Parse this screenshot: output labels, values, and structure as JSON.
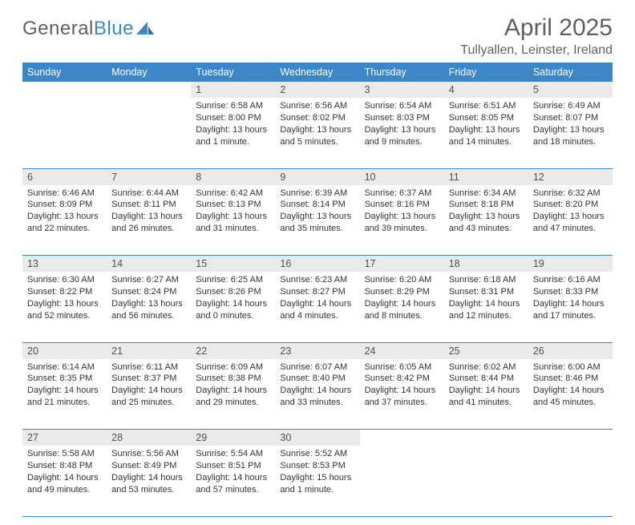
{
  "logo": {
    "part1": "General",
    "part2": "Blue"
  },
  "title": "April 2025",
  "location": "Tullyallen, Leinster, Ireland",
  "colors": {
    "header_bg": "#3b87c8",
    "header_text": "#ffffff",
    "daynum_bg": "#eaeaea",
    "text": "#333333",
    "muted": "#606060",
    "rule": "#3b87c8"
  },
  "fonts": {
    "title_size_pt": 22,
    "location_size_pt": 12,
    "dayheader_size_pt": 9.5,
    "daynum_size_pt": 9.5,
    "body_size_pt": 8.5
  },
  "day_headers": [
    "Sunday",
    "Monday",
    "Tuesday",
    "Wednesday",
    "Thursday",
    "Friday",
    "Saturday"
  ],
  "weeks": [
    [
      null,
      null,
      {
        "n": "1",
        "sr": "Sunrise: 6:58 AM",
        "ss": "Sunset: 8:00 PM",
        "dl": "Daylight: 13 hours and 1 minute."
      },
      {
        "n": "2",
        "sr": "Sunrise: 6:56 AM",
        "ss": "Sunset: 8:02 PM",
        "dl": "Daylight: 13 hours and 5 minutes."
      },
      {
        "n": "3",
        "sr": "Sunrise: 6:54 AM",
        "ss": "Sunset: 8:03 PM",
        "dl": "Daylight: 13 hours and 9 minutes."
      },
      {
        "n": "4",
        "sr": "Sunrise: 6:51 AM",
        "ss": "Sunset: 8:05 PM",
        "dl": "Daylight: 13 hours and 14 minutes."
      },
      {
        "n": "5",
        "sr": "Sunrise: 6:49 AM",
        "ss": "Sunset: 8:07 PM",
        "dl": "Daylight: 13 hours and 18 minutes."
      }
    ],
    [
      {
        "n": "6",
        "sr": "Sunrise: 6:46 AM",
        "ss": "Sunset: 8:09 PM",
        "dl": "Daylight: 13 hours and 22 minutes."
      },
      {
        "n": "7",
        "sr": "Sunrise: 6:44 AM",
        "ss": "Sunset: 8:11 PM",
        "dl": "Daylight: 13 hours and 26 minutes."
      },
      {
        "n": "8",
        "sr": "Sunrise: 6:42 AM",
        "ss": "Sunset: 8:13 PM",
        "dl": "Daylight: 13 hours and 31 minutes."
      },
      {
        "n": "9",
        "sr": "Sunrise: 6:39 AM",
        "ss": "Sunset: 8:14 PM",
        "dl": "Daylight: 13 hours and 35 minutes."
      },
      {
        "n": "10",
        "sr": "Sunrise: 6:37 AM",
        "ss": "Sunset: 8:16 PM",
        "dl": "Daylight: 13 hours and 39 minutes."
      },
      {
        "n": "11",
        "sr": "Sunrise: 6:34 AM",
        "ss": "Sunset: 8:18 PM",
        "dl": "Daylight: 13 hours and 43 minutes."
      },
      {
        "n": "12",
        "sr": "Sunrise: 6:32 AM",
        "ss": "Sunset: 8:20 PM",
        "dl": "Daylight: 13 hours and 47 minutes."
      }
    ],
    [
      {
        "n": "13",
        "sr": "Sunrise: 6:30 AM",
        "ss": "Sunset: 8:22 PM",
        "dl": "Daylight: 13 hours and 52 minutes."
      },
      {
        "n": "14",
        "sr": "Sunrise: 6:27 AM",
        "ss": "Sunset: 8:24 PM",
        "dl": "Daylight: 13 hours and 56 minutes."
      },
      {
        "n": "15",
        "sr": "Sunrise: 6:25 AM",
        "ss": "Sunset: 8:26 PM",
        "dl": "Daylight: 14 hours and 0 minutes."
      },
      {
        "n": "16",
        "sr": "Sunrise: 6:23 AM",
        "ss": "Sunset: 8:27 PM",
        "dl": "Daylight: 14 hours and 4 minutes."
      },
      {
        "n": "17",
        "sr": "Sunrise: 6:20 AM",
        "ss": "Sunset: 8:29 PM",
        "dl": "Daylight: 14 hours and 8 minutes."
      },
      {
        "n": "18",
        "sr": "Sunrise: 6:18 AM",
        "ss": "Sunset: 8:31 PM",
        "dl": "Daylight: 14 hours and 12 minutes."
      },
      {
        "n": "19",
        "sr": "Sunrise: 6:16 AM",
        "ss": "Sunset: 8:33 PM",
        "dl": "Daylight: 14 hours and 17 minutes."
      }
    ],
    [
      {
        "n": "20",
        "sr": "Sunrise: 6:14 AM",
        "ss": "Sunset: 8:35 PM",
        "dl": "Daylight: 14 hours and 21 minutes."
      },
      {
        "n": "21",
        "sr": "Sunrise: 6:11 AM",
        "ss": "Sunset: 8:37 PM",
        "dl": "Daylight: 14 hours and 25 minutes."
      },
      {
        "n": "22",
        "sr": "Sunrise: 6:09 AM",
        "ss": "Sunset: 8:38 PM",
        "dl": "Daylight: 14 hours and 29 minutes."
      },
      {
        "n": "23",
        "sr": "Sunrise: 6:07 AM",
        "ss": "Sunset: 8:40 PM",
        "dl": "Daylight: 14 hours and 33 minutes."
      },
      {
        "n": "24",
        "sr": "Sunrise: 6:05 AM",
        "ss": "Sunset: 8:42 PM",
        "dl": "Daylight: 14 hours and 37 minutes."
      },
      {
        "n": "25",
        "sr": "Sunrise: 6:02 AM",
        "ss": "Sunset: 8:44 PM",
        "dl": "Daylight: 14 hours and 41 minutes."
      },
      {
        "n": "26",
        "sr": "Sunrise: 6:00 AM",
        "ss": "Sunset: 8:46 PM",
        "dl": "Daylight: 14 hours and 45 minutes."
      }
    ],
    [
      {
        "n": "27",
        "sr": "Sunrise: 5:58 AM",
        "ss": "Sunset: 8:48 PM",
        "dl": "Daylight: 14 hours and 49 minutes."
      },
      {
        "n": "28",
        "sr": "Sunrise: 5:56 AM",
        "ss": "Sunset: 8:49 PM",
        "dl": "Daylight: 14 hours and 53 minutes."
      },
      {
        "n": "29",
        "sr": "Sunrise: 5:54 AM",
        "ss": "Sunset: 8:51 PM",
        "dl": "Daylight: 14 hours and 57 minutes."
      },
      {
        "n": "30",
        "sr": "Sunrise: 5:52 AM",
        "ss": "Sunset: 8:53 PM",
        "dl": "Daylight: 15 hours and 1 minute."
      },
      null,
      null,
      null
    ]
  ]
}
